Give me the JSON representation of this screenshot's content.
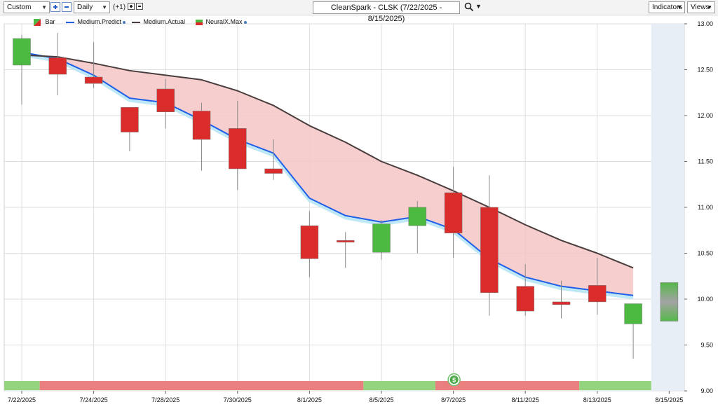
{
  "toolbar": {
    "range_select": "Custom",
    "period_select": "Daily",
    "offset_label": "(+1)",
    "title": "CleanSpark - CLSK (7/22/2025 - 8/15/2025)",
    "indicators_label": "Indicators",
    "views_label": "Views"
  },
  "legend": {
    "bar": "Bar",
    "predict": "Medium.Predict",
    "actual": "Medium.Actual",
    "neural": "NeuralX.Max"
  },
  "colors": {
    "up": "#4cb940",
    "down": "#db2c2c",
    "predict": "#1f5fe8",
    "actual": "#4a3d3d",
    "fill": "#f4c6c6",
    "signal_green": "#95d47e",
    "signal_red": "#ea7f80",
    "forecast_bg": "#e8eef6"
  },
  "chart_data": {
    "type": "candlestick",
    "x_labels": [
      "7/22/2025",
      "7/24/2025",
      "7/28/2025",
      "7/30/2025",
      "8/1/2025",
      "8/5/2025",
      "8/7/2025",
      "8/11/2025",
      "8/13/2025",
      "8/15/2025"
    ],
    "y_ticks": [
      "9.00",
      "9.50",
      "10.00",
      "10.50",
      "11.00",
      "11.50",
      "12.00",
      "12.50",
      "13.00"
    ],
    "ylim": [
      9.0,
      13.0
    ],
    "candles": [
      {
        "open": 12.55,
        "high": 12.88,
        "low": 12.12,
        "close": 12.84
      },
      {
        "open": 12.63,
        "high": 12.9,
        "low": 12.22,
        "close": 12.45
      },
      {
        "open": 12.42,
        "high": 12.8,
        "low": 12.3,
        "close": 12.35
      },
      {
        "open": 12.09,
        "high": 12.09,
        "low": 11.61,
        "close": 11.82
      },
      {
        "open": 12.29,
        "high": 12.4,
        "low": 11.86,
        "close": 12.04
      },
      {
        "open": 12.05,
        "high": 12.14,
        "low": 11.4,
        "close": 11.74
      },
      {
        "open": 11.86,
        "high": 12.16,
        "low": 11.19,
        "close": 11.42
      },
      {
        "open": 11.42,
        "high": 11.74,
        "low": 11.3,
        "close": 11.37
      },
      {
        "open": 10.8,
        "high": 10.96,
        "low": 10.24,
        "close": 10.44
      },
      {
        "open": 10.64,
        "high": 10.73,
        "low": 10.34,
        "close": 10.62
      },
      {
        "open": 10.51,
        "high": 10.86,
        "low": 10.43,
        "close": 10.82
      },
      {
        "open": 10.8,
        "high": 11.07,
        "low": 10.5,
        "close": 11.0
      },
      {
        "open": 11.16,
        "high": 11.44,
        "low": 10.45,
        "close": 10.72
      },
      {
        "open": 11.0,
        "high": 11.35,
        "low": 9.82,
        "close": 10.07
      },
      {
        "open": 10.14,
        "high": 10.38,
        "low": 9.82,
        "close": 9.87
      },
      {
        "open": 9.97,
        "high": 10.2,
        "low": 9.79,
        "close": 9.94
      },
      {
        "open": 10.15,
        "high": 10.45,
        "low": 9.83,
        "close": 9.97
      },
      {
        "open": 9.73,
        "high": 9.95,
        "low": 9.35,
        "close": 9.95
      }
    ],
    "forecast_candle": {
      "open": 9.76,
      "close": 10.18
    },
    "medium_predict": [
      12.69,
      12.62,
      12.44,
      12.19,
      12.14,
      11.95,
      11.74,
      11.59,
      11.1,
      10.91,
      10.84,
      10.9,
      10.76,
      10.44,
      10.24,
      10.14,
      10.09,
      10.04
    ],
    "medium_actual": [
      12.66,
      12.64,
      12.57,
      12.49,
      12.44,
      12.39,
      12.27,
      12.11,
      11.89,
      11.71,
      11.5,
      11.35,
      11.18,
      11.0,
      10.81,
      10.64,
      10.5,
      10.34
    ],
    "signal_bar": [
      {
        "state": "green",
        "from": 0,
        "to": 1
      },
      {
        "state": "red",
        "from": 1,
        "to": 10
      },
      {
        "state": "green",
        "from": 10,
        "to": 12
      },
      {
        "state": "red",
        "from": 12,
        "to": 16
      },
      {
        "state": "green",
        "from": 16,
        "to": 18
      }
    ],
    "signal_marker": {
      "label": "$",
      "at": 12.5
    }
  }
}
